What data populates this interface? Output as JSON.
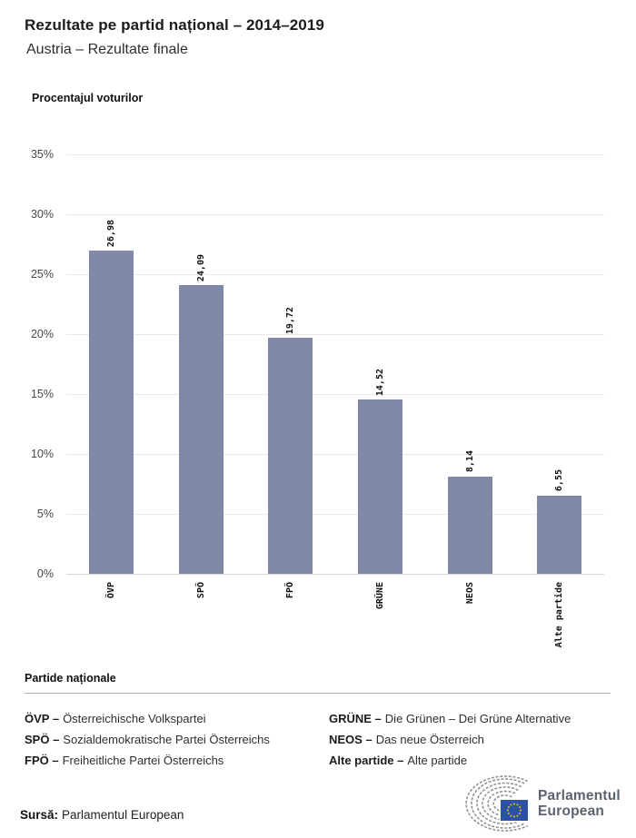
{
  "header": {
    "title": "Rezultate pe partid național – 2014–2019",
    "subtitle": "Austria – Rezultate finale"
  },
  "chart_data": {
    "type": "bar",
    "title": "Procentajul voturilor",
    "categories": [
      "ÖVP",
      "SPÖ",
      "FPÖ",
      "GRÜNE",
      "NEOS",
      "Alte partide"
    ],
    "values": [
      26.98,
      24.09,
      19.72,
      14.52,
      8.14,
      6.55
    ],
    "value_labels": [
      "26,98",
      "24,09",
      "19,72",
      "14,52",
      "8,14",
      "6,55"
    ],
    "xlabel": "",
    "ylabel": "",
    "ylim": [
      0,
      35
    ],
    "ytick_step": 5,
    "ytick_labels": [
      "0%",
      "5%",
      "10%",
      "15%",
      "20%",
      "25%",
      "30%",
      "35%"
    ],
    "grid": true,
    "legend_position": "none",
    "bar_color": "#8089a7"
  },
  "legend": {
    "heading": "Partide naționale",
    "items": [
      {
        "abbr": "ÖVP –",
        "name": "Österreichische Volkspartei"
      },
      {
        "abbr": "SPÖ –",
        "name": "Sozialdemokratische Partei Österreichs"
      },
      {
        "abbr": "FPÖ –",
        "name": "Freiheitliche Partei Österreichs"
      },
      {
        "abbr": "GRÜNE –",
        "name": "Die Grünen – Dei Grüne Alternative"
      },
      {
        "abbr": "NEOS –",
        "name": "Das neue Österreich"
      },
      {
        "abbr": "Alte partide –",
        "name": "Alte partide"
      }
    ]
  },
  "footer": {
    "source_label": "Sursă:",
    "source_value": "Parlamentul European",
    "logo_line1": "Parlamentul",
    "logo_line2": "European"
  },
  "colors": {
    "bar": "#8089a7",
    "gridline": "#eaeaea",
    "flag_blue": "#2c52a5",
    "star_yellow": "#ffcc00",
    "hemicycle_gray": "#8f9499",
    "logo_text": "#5a6370"
  }
}
